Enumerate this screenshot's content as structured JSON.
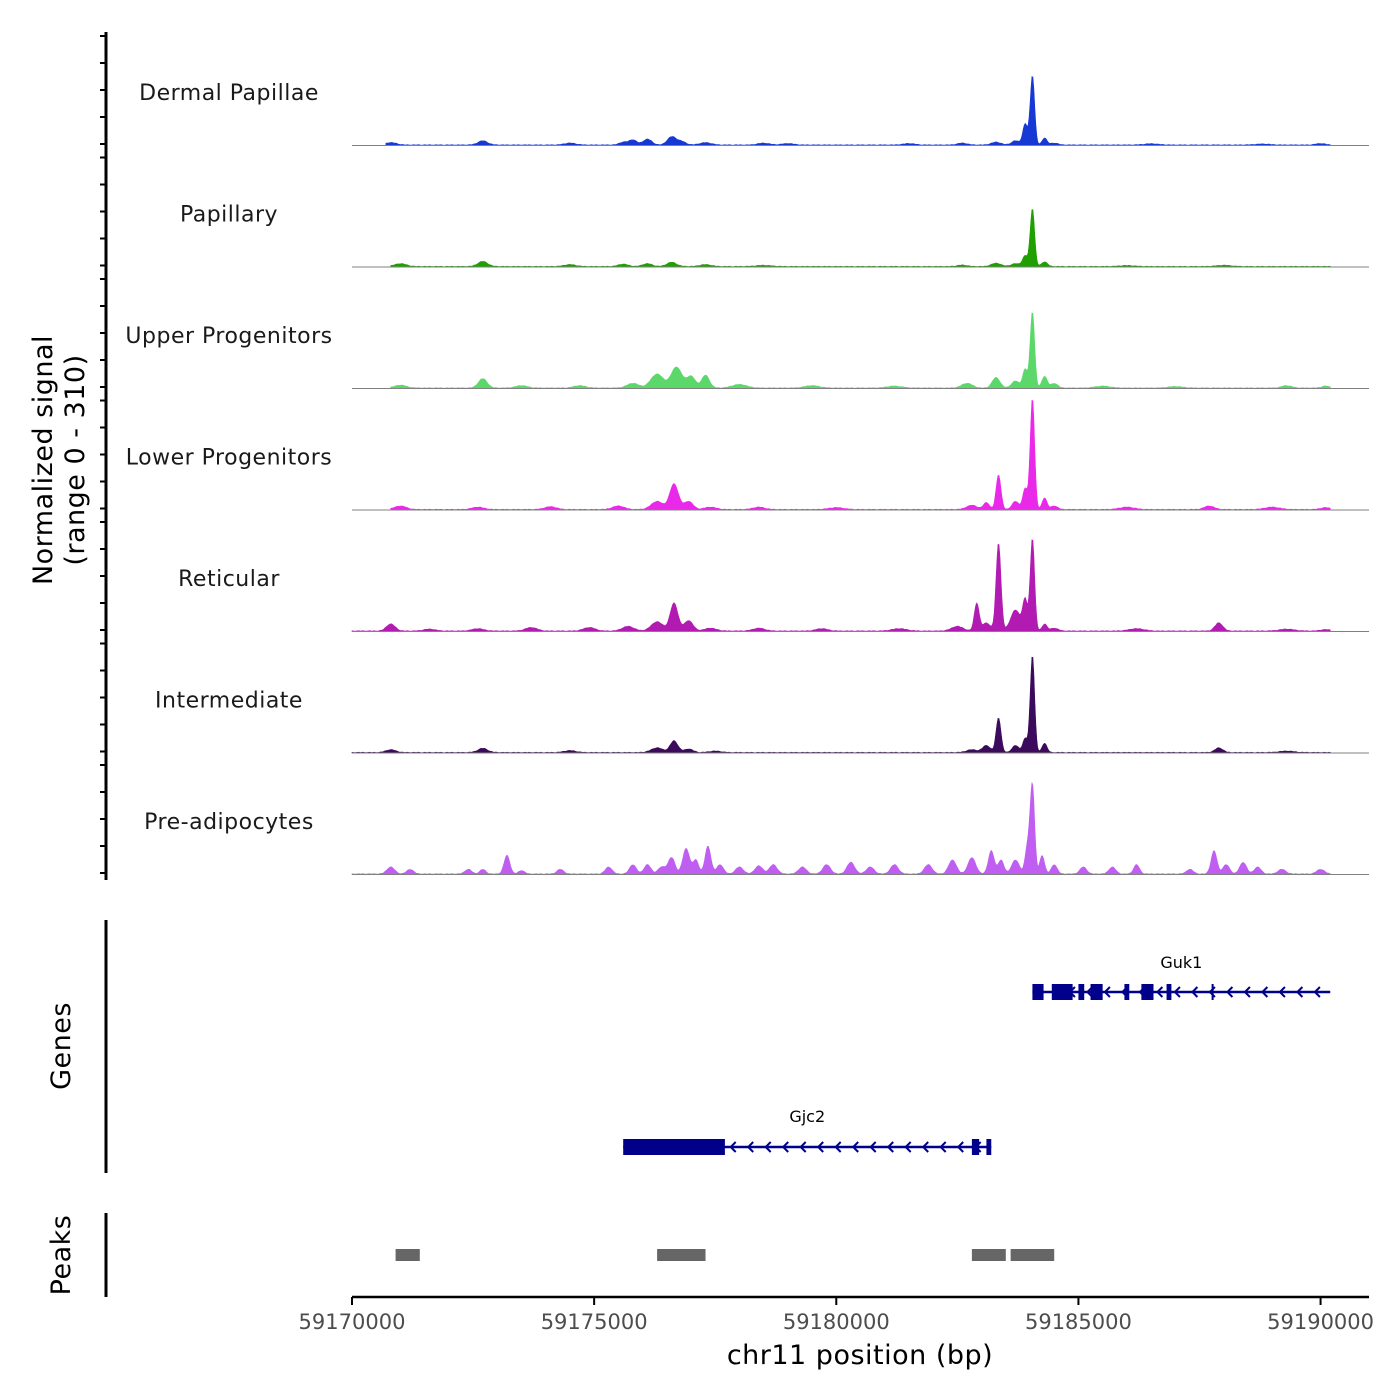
{
  "chart_data": {
    "type": "area",
    "chromosome": "chr11",
    "xlabel": "chr11 position (bp)",
    "xlim": [
      59170000,
      59191000
    ],
    "x_ticks": [
      "59170000",
      "59175000",
      "59180000",
      "59185000",
      "59190000"
    ],
    "x_tick_values": [
      59170000,
      59175000,
      59180000,
      59185000,
      59190000
    ],
    "ylabel_line1": "Normalized signal",
    "ylabel_line2": "(range 0 - 310)",
    "ylim": [
      0,
      310
    ],
    "series": [
      {
        "name": "Dermal Papillae",
        "color": "#1638d4",
        "range": [
          59170700,
          59190200
        ],
        "peaks": [
          [
            59170800,
            10,
            120
          ],
          [
            59172700,
            18,
            100
          ],
          [
            59174500,
            8,
            120
          ],
          [
            59175600,
            12,
            80
          ],
          [
            59175800,
            22,
            80
          ],
          [
            59176100,
            25,
            90
          ],
          [
            59176600,
            35,
            90
          ],
          [
            59176800,
            15,
            90
          ],
          [
            59177300,
            10,
            120
          ],
          [
            59178500,
            8,
            120
          ],
          [
            59179000,
            6,
            120
          ],
          [
            59181500,
            6,
            120
          ],
          [
            59182600,
            8,
            100
          ],
          [
            59183300,
            12,
            100
          ],
          [
            59183700,
            18,
            80
          ],
          [
            59183900,
            90,
            50
          ],
          [
            59184050,
            300,
            45
          ],
          [
            59184300,
            30,
            50
          ],
          [
            59184500,
            8,
            80
          ],
          [
            59186500,
            5,
            150
          ],
          [
            59188800,
            4,
            150
          ],
          [
            59190000,
            6,
            100
          ]
        ]
      },
      {
        "name": "Papillary",
        "color": "#1f9f00",
        "range": [
          59170800,
          59190200
        ],
        "peaks": [
          [
            59171000,
            12,
            120
          ],
          [
            59172700,
            22,
            100
          ],
          [
            59174500,
            8,
            120
          ],
          [
            59175600,
            10,
            100
          ],
          [
            59176100,
            12,
            100
          ],
          [
            59176600,
            18,
            100
          ],
          [
            59177300,
            8,
            120
          ],
          [
            59178500,
            5,
            150
          ],
          [
            59182600,
            6,
            100
          ],
          [
            59183300,
            14,
            100
          ],
          [
            59183700,
            12,
            90
          ],
          [
            59183900,
            45,
            55
          ],
          [
            59184050,
            250,
            45
          ],
          [
            59184300,
            20,
            60
          ],
          [
            59186000,
            4,
            150
          ],
          [
            59188000,
            5,
            150
          ]
        ]
      },
      {
        "name": "Upper Progenitors",
        "color": "#5cd86b",
        "range": [
          59170800,
          59190200
        ],
        "peaks": [
          [
            59171000,
            12,
            120
          ],
          [
            59172700,
            40,
            90
          ],
          [
            59173500,
            10,
            120
          ],
          [
            59174700,
            10,
            120
          ],
          [
            59175800,
            20,
            120
          ],
          [
            59176300,
            60,
            130
          ],
          [
            59176700,
            90,
            110
          ],
          [
            59177000,
            50,
            90
          ],
          [
            59177300,
            55,
            80
          ],
          [
            59178000,
            15,
            150
          ],
          [
            59179500,
            10,
            150
          ],
          [
            59181200,
            8,
            150
          ],
          [
            59182700,
            20,
            110
          ],
          [
            59183300,
            45,
            80
          ],
          [
            59183700,
            30,
            80
          ],
          [
            59183900,
            80,
            50
          ],
          [
            59184050,
            330,
            45
          ],
          [
            59184300,
            50,
            55
          ],
          [
            59184500,
            20,
            70
          ],
          [
            59185500,
            8,
            150
          ],
          [
            59187000,
            6,
            150
          ],
          [
            59189300,
            10,
            100
          ],
          [
            59190100,
            8,
            80
          ]
        ]
      },
      {
        "name": "Lower Progenitors",
        "color": "#ea28ea",
        "range": [
          59170800,
          59190200
        ],
        "peaks": [
          [
            59171000,
            15,
            120
          ],
          [
            59172600,
            10,
            120
          ],
          [
            59174100,
            12,
            120
          ],
          [
            59175500,
            15,
            120
          ],
          [
            59176300,
            35,
            120
          ],
          [
            59176650,
            110,
            90
          ],
          [
            59176950,
            35,
            90
          ],
          [
            59177400,
            10,
            120
          ],
          [
            59178400,
            10,
            120
          ],
          [
            59180000,
            8,
            150
          ],
          [
            59182800,
            18,
            110
          ],
          [
            59183100,
            30,
            60
          ],
          [
            59183350,
            150,
            50
          ],
          [
            59183700,
            35,
            70
          ],
          [
            59183900,
            90,
            50
          ],
          [
            59184050,
            480,
            45
          ],
          [
            59184300,
            50,
            50
          ],
          [
            59184500,
            15,
            70
          ],
          [
            59186000,
            10,
            150
          ],
          [
            59187700,
            15,
            100
          ],
          [
            59189000,
            10,
            150
          ],
          [
            59190100,
            8,
            100
          ]
        ]
      },
      {
        "name": "Reticular",
        "color": "#b21bb2",
        "range": [
          59170000,
          59190200
        ],
        "peaks": [
          [
            59170800,
            30,
            90
          ],
          [
            59171600,
            8,
            120
          ],
          [
            59172600,
            10,
            120
          ],
          [
            59173700,
            15,
            120
          ],
          [
            59174900,
            15,
            120
          ],
          [
            59175700,
            20,
            120
          ],
          [
            59176300,
            40,
            120
          ],
          [
            59176650,
            120,
            80
          ],
          [
            59176950,
            45,
            90
          ],
          [
            59177400,
            12,
            120
          ],
          [
            59178400,
            12,
            120
          ],
          [
            59179700,
            10,
            120
          ],
          [
            59181300,
            10,
            150
          ],
          [
            59182500,
            20,
            120
          ],
          [
            59182900,
            120,
            50
          ],
          [
            59183100,
            35,
            80
          ],
          [
            59183350,
            380,
            50
          ],
          [
            59183700,
            90,
            100
          ],
          [
            59183900,
            130,
            50
          ],
          [
            59184050,
            400,
            45
          ],
          [
            59184300,
            30,
            50
          ],
          [
            59184500,
            12,
            80
          ],
          [
            59186200,
            10,
            150
          ],
          [
            59187900,
            35,
            80
          ],
          [
            59189300,
            8,
            150
          ],
          [
            59190100,
            6,
            100
          ]
        ]
      },
      {
        "name": "Intermediate",
        "color": "#3c0a5c",
        "range": [
          59170000,
          59190200
        ],
        "peaks": [
          [
            59170800,
            12,
            100
          ],
          [
            59172700,
            18,
            100
          ],
          [
            59174500,
            8,
            120
          ],
          [
            59176300,
            20,
            120
          ],
          [
            59176650,
            50,
            80
          ],
          [
            59176950,
            15,
            90
          ],
          [
            59177500,
            6,
            120
          ],
          [
            59182800,
            12,
            110
          ],
          [
            59183100,
            30,
            80
          ],
          [
            59183350,
            150,
            50
          ],
          [
            59183700,
            30,
            70
          ],
          [
            59183900,
            60,
            50
          ],
          [
            59184050,
            420,
            45
          ],
          [
            59184300,
            40,
            50
          ],
          [
            59187900,
            20,
            80
          ],
          [
            59189300,
            6,
            150
          ]
        ]
      },
      {
        "name": "Pre-adipocytes",
        "color": "#bf5ef0",
        "range": [
          59170000,
          59190200
        ],
        "peaks": [
          [
            59170800,
            30,
            80
          ],
          [
            59171200,
            20,
            70
          ],
          [
            59172400,
            20,
            70
          ],
          [
            59172700,
            20,
            60
          ],
          [
            59173200,
            80,
            60
          ],
          [
            59173500,
            15,
            60
          ],
          [
            59174300,
            20,
            70
          ],
          [
            59175300,
            30,
            70
          ],
          [
            59175800,
            40,
            70
          ],
          [
            59176100,
            40,
            70
          ],
          [
            59176400,
            30,
            80
          ],
          [
            59176600,
            70,
            70
          ],
          [
            59176900,
            110,
            70
          ],
          [
            59177100,
            60,
            60
          ],
          [
            59177350,
            120,
            60
          ],
          [
            59177600,
            40,
            70
          ],
          [
            59178000,
            30,
            80
          ],
          [
            59178400,
            35,
            80
          ],
          [
            59178700,
            40,
            80
          ],
          [
            59179300,
            30,
            80
          ],
          [
            59179800,
            40,
            80
          ],
          [
            59180300,
            50,
            80
          ],
          [
            59180700,
            30,
            80
          ],
          [
            59181200,
            40,
            80
          ],
          [
            59181900,
            40,
            80
          ],
          [
            59182400,
            60,
            80
          ],
          [
            59182800,
            70,
            80
          ],
          [
            59183200,
            100,
            60
          ],
          [
            59183400,
            60,
            60
          ],
          [
            59183700,
            60,
            80
          ],
          [
            59183950,
            120,
            50
          ],
          [
            59184050,
            380,
            45
          ],
          [
            59184250,
            80,
            50
          ],
          [
            59184500,
            40,
            60
          ],
          [
            59185100,
            30,
            70
          ],
          [
            59185700,
            30,
            70
          ],
          [
            59186200,
            40,
            60
          ],
          [
            59187300,
            20,
            70
          ],
          [
            59187800,
            100,
            60
          ],
          [
            59188050,
            40,
            70
          ],
          [
            59188400,
            50,
            70
          ],
          [
            59188700,
            30,
            70
          ],
          [
            59189200,
            20,
            80
          ],
          [
            59190000,
            20,
            80
          ]
        ]
      }
    ],
    "genes": [
      {
        "name": "Guk1",
        "strand": "-",
        "start": 59184050,
        "end": 59190200,
        "exons": [
          [
            59184050,
            59184280
          ],
          [
            59184450,
            59184880
          ],
          [
            59185000,
            59185120
          ],
          [
            59185250,
            59185500
          ],
          [
            59185950,
            59186050
          ],
          [
            59186300,
            59186550
          ],
          [
            59186820,
            59186920
          ],
          [
            59187750,
            59187790
          ]
        ]
      },
      {
        "name": "Gjc2",
        "strand": "-",
        "start": 59175600,
        "end": 59183200,
        "exons": [
          [
            59175600,
            59177700
          ],
          [
            59182800,
            59182950
          ],
          [
            59183100,
            59183200
          ]
        ]
      }
    ],
    "peaks": [
      [
        59170900,
        59171400
      ],
      [
        59176300,
        59177300
      ],
      [
        59182800,
        59183500
      ],
      [
        59183600,
        59184500
      ]
    ],
    "panel_titles": {
      "genes": "Genes",
      "peaks": "Peaks"
    },
    "colors": {
      "gene": "#00008b",
      "peak": "#666666",
      "baseline": "#808080",
      "axis": "#000000"
    }
  }
}
